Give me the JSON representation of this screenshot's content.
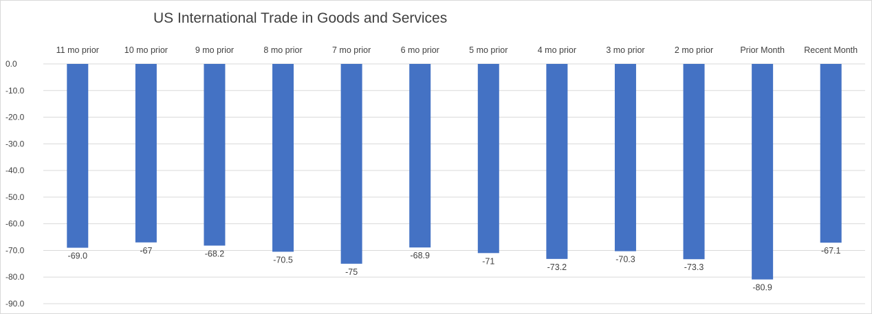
{
  "chart_data": {
    "type": "bar",
    "title": "US International Trade in Goods and Services",
    "xlabel": "",
    "ylabel": "",
    "ylim": [
      -90,
      0
    ],
    "yticks": [
      "0.0",
      "-10.0",
      "-20.0",
      "-30.0",
      "-40.0",
      "-50.0",
      "-60.0",
      "-70.0",
      "-80.0",
      "-90.0"
    ],
    "ytick_values": [
      0,
      -10,
      -20,
      -30,
      -40,
      -50,
      -60,
      -70,
      -80,
      -90
    ],
    "categories": [
      "11 mo prior",
      "10 mo prior",
      "9 mo prior",
      "8 mo prior",
      "7 mo prior",
      "6 mo prior",
      "5 mo prior",
      "4 mo prior",
      "3 mo prior",
      "2 mo prior",
      "Prior Month",
      "Recent Month"
    ],
    "values": [
      -69.0,
      -67,
      -68.2,
      -70.5,
      -75,
      -68.9,
      -71,
      -73.2,
      -70.3,
      -73.3,
      -80.9,
      -67.1
    ],
    "data_labels": [
      "-69.0",
      "-67",
      "-68.2",
      "-70.5",
      "-75",
      "-68.9",
      "-71",
      "-73.2",
      "-70.3",
      "-73.3",
      "-80.9",
      "-67.1"
    ],
    "category_axis_position": "top",
    "grid": true,
    "legend": "none",
    "bar_color": "#4472c4",
    "grid_color": "#d9d9d9"
  }
}
